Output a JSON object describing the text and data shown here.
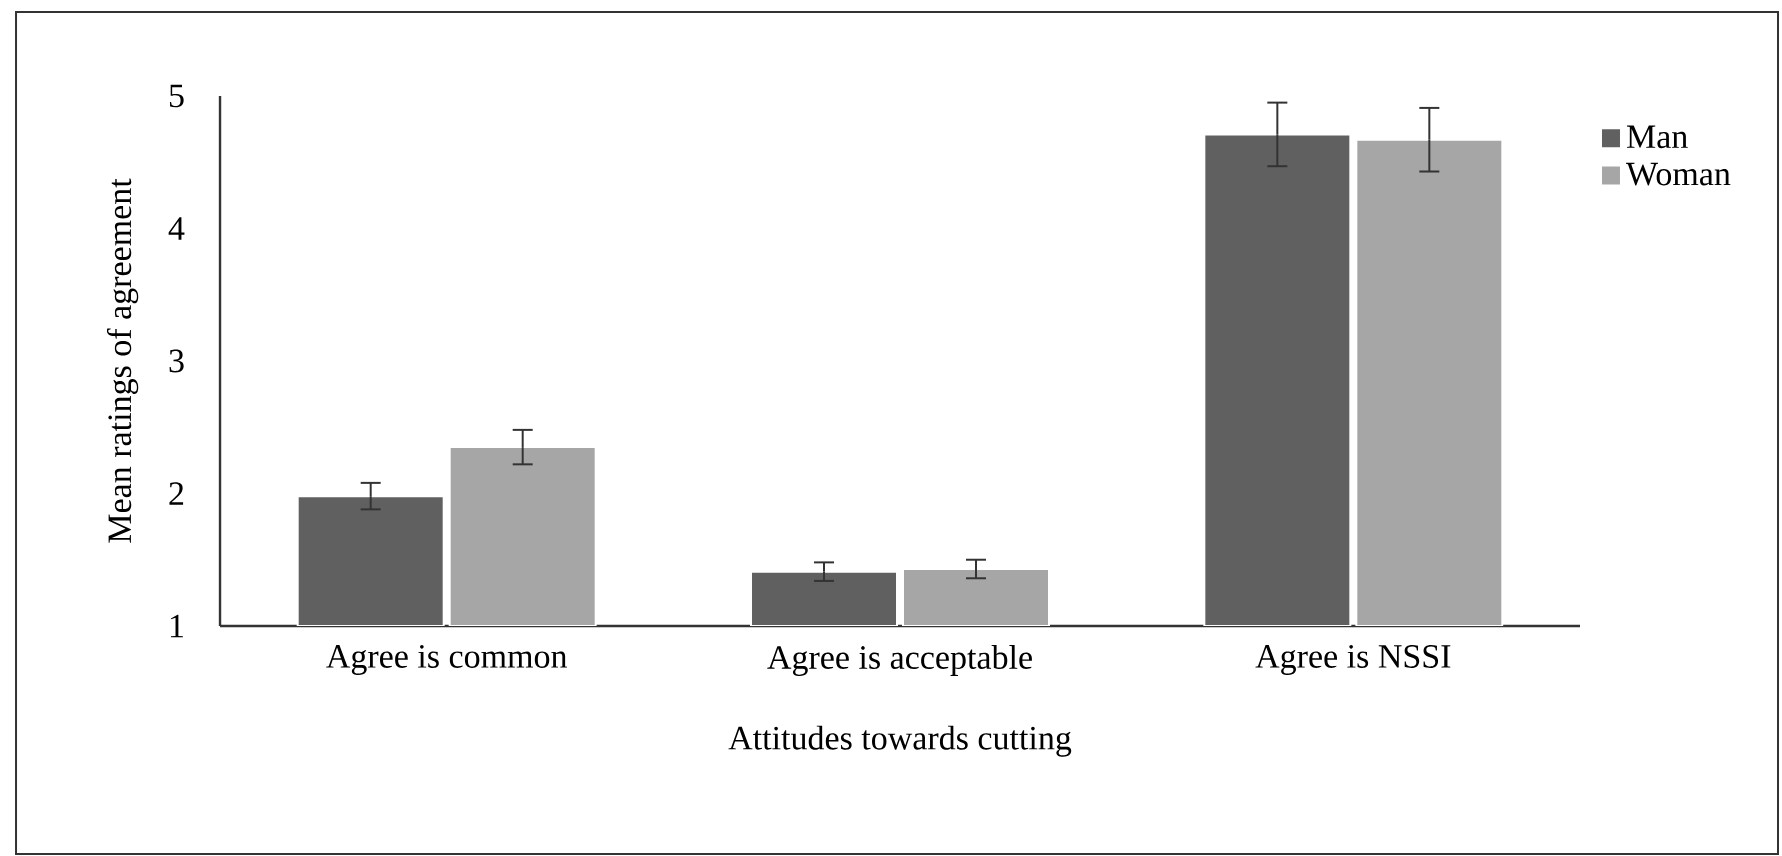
{
  "chart_data": {
    "type": "bar",
    "xlabel": "Attitudes towards cutting",
    "ylabel": "Mean ratings of agreement",
    "categories": [
      "Agree is common",
      "Agree is acceptable",
      "Agree is NSSI"
    ],
    "series": [
      {
        "name": "Man",
        "color": "#606060",
        "values": [
          1.98,
          1.41,
          4.71
        ],
        "errors": [
          0.1,
          0.07,
          0.24
        ]
      },
      {
        "name": "Woman",
        "color": "#a6a6a6",
        "values": [
          2.35,
          1.43,
          4.67
        ],
        "errors": [
          0.13,
          0.07,
          0.24
        ]
      }
    ],
    "ylim": [
      1,
      5
    ],
    "yticks": [
      1,
      2,
      3,
      4,
      5
    ],
    "legend": "top right"
  }
}
